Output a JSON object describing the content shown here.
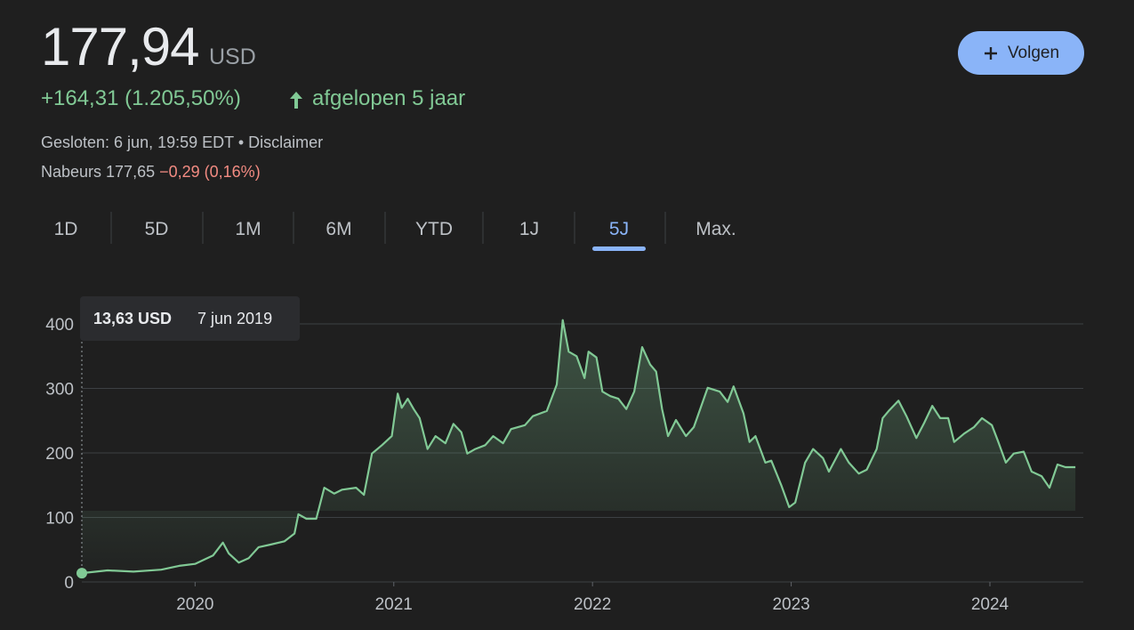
{
  "header": {
    "price": "177,94",
    "currency": "USD",
    "change": "+164,31 (1.205,50%)",
    "period": "afgelopen 5 jaar",
    "closed": "Gesloten: 6 jun, 19:59 EDT",
    "separator": "•",
    "disclaimer": "Disclaimer",
    "after_hours": "Nabeurs 177,65",
    "after_hours_change": "−0,29 (0,16%)",
    "follow_button": "Volgen"
  },
  "tabs": [
    "1D",
    "5D",
    "1M",
    "6M",
    "YTD",
    "1J",
    "5J",
    "Max."
  ],
  "active_tab": 6,
  "tooltip": {
    "price": "13,63 USD",
    "date": "7 jun 2019"
  },
  "chart_data": {
    "type": "line",
    "x": [
      2019.43,
      2019.56,
      2019.69,
      2019.83,
      2019.92,
      2020.0,
      2020.09,
      2020.14,
      2020.17,
      2020.22,
      2020.27,
      2020.32,
      2020.38,
      2020.45,
      2020.5,
      2020.52,
      2020.56,
      2020.61,
      2020.65,
      2020.7,
      2020.74,
      2020.81,
      2020.85,
      2020.89,
      2020.94,
      2020.99,
      2021.02,
      2021.04,
      2021.07,
      2021.1,
      2021.13,
      2021.17,
      2021.21,
      2021.26,
      2021.3,
      2021.34,
      2021.37,
      2021.41,
      2021.46,
      2021.5,
      2021.55,
      2021.59,
      2021.66,
      2021.7,
      2021.77,
      2021.82,
      2021.85,
      2021.88,
      2021.92,
      2021.96,
      2021.98,
      2022.02,
      2022.05,
      2022.09,
      2022.13,
      2022.17,
      2022.21,
      2022.25,
      2022.29,
      2022.32,
      2022.35,
      2022.38,
      2022.42,
      2022.47,
      2022.51,
      2022.58,
      2022.64,
      2022.68,
      2022.71,
      2022.76,
      2022.79,
      2022.82,
      2022.87,
      2022.9,
      2022.95,
      2022.99,
      2023.02,
      2023.07,
      2023.11,
      2023.16,
      2023.19,
      2023.25,
      2023.29,
      2023.34,
      2023.38,
      2023.43,
      2023.46,
      2023.49,
      2023.54,
      2023.58,
      2023.63,
      2023.67,
      2023.71,
      2023.75,
      2023.79,
      2023.82,
      2023.87,
      2023.92,
      2023.96,
      2024.01,
      2024.04,
      2024.08,
      2024.12,
      2024.17,
      2024.21,
      2024.26,
      2024.3,
      2024.34,
      2024.38,
      2024.43
    ],
    "series": [
      {
        "color": "#81c995",
        "values": [
          13.63,
          18,
          16,
          19,
          25,
          28,
          41,
          61,
          44,
          30,
          37,
          54,
          58,
          63,
          75,
          105,
          98,
          98,
          146,
          137,
          143,
          146,
          135,
          199,
          212,
          226,
          292,
          270,
          284,
          268,
          254,
          206,
          226,
          215,
          245,
          232,
          199,
          206,
          212,
          226,
          215,
          237,
          243,
          257,
          265,
          306,
          406,
          357,
          350,
          316,
          357,
          348,
          295,
          288,
          284,
          268,
          295,
          364,
          337,
          326,
          268,
          226,
          251,
          226,
          240,
          301,
          295,
          279,
          303,
          261,
          217,
          226,
          185,
          188,
          150,
          116,
          123,
          185,
          206,
          192,
          171,
          206,
          185,
          168,
          174,
          206,
          254,
          265,
          281,
          257,
          223,
          247,
          273,
          254,
          254,
          217,
          230,
          240,
          254,
          243,
          219,
          185,
          199,
          202,
          171,
          164,
          146,
          182,
          178,
          177.94
        ]
      }
    ],
    "xlim": [
      2019.43,
      2024.47
    ],
    "xticks": [
      2020,
      2021,
      2022,
      2023,
      2024
    ],
    "ylim": [
      0,
      400
    ],
    "yticks": [
      0,
      100,
      200,
      300,
      400
    ],
    "grid": true
  }
}
